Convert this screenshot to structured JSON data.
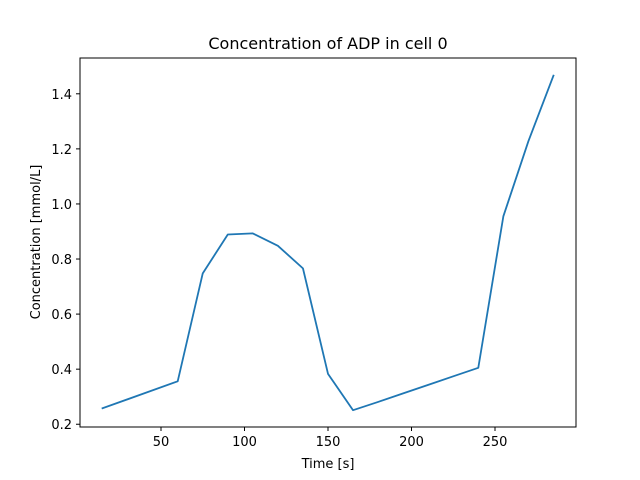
{
  "chart_data": {
    "type": "line",
    "title": "Concentration of ADP in cell 0",
    "xlabel": "Time [s]",
    "ylabel": "Concentration [mmol/L]",
    "xlim": [
      1.5,
      298.5
    ],
    "ylim": [
      0.19,
      1.53
    ],
    "x_ticks": [
      50,
      100,
      150,
      200,
      250
    ],
    "y_ticks": [
      0.2,
      0.4,
      0.6,
      0.8,
      1.0,
      1.2,
      1.4
    ],
    "y_tick_labels": [
      "0.2",
      "0.4",
      "0.6",
      "0.8",
      "1.0",
      "1.2",
      "1.4"
    ],
    "grid": false,
    "series": [
      {
        "color": "#1f77b4",
        "x": [
          15,
          60,
          75,
          90,
          105,
          120,
          135,
          150,
          165,
          180,
          195,
          210,
          225,
          240,
          255,
          270,
          285
        ],
        "values": [
          0.258,
          0.356,
          0.748,
          0.889,
          0.893,
          0.848,
          0.766,
          0.383,
          0.251,
          0.281,
          0.312,
          0.343,
          0.374,
          0.405,
          0.955,
          1.228,
          1.466
        ]
      }
    ]
  }
}
